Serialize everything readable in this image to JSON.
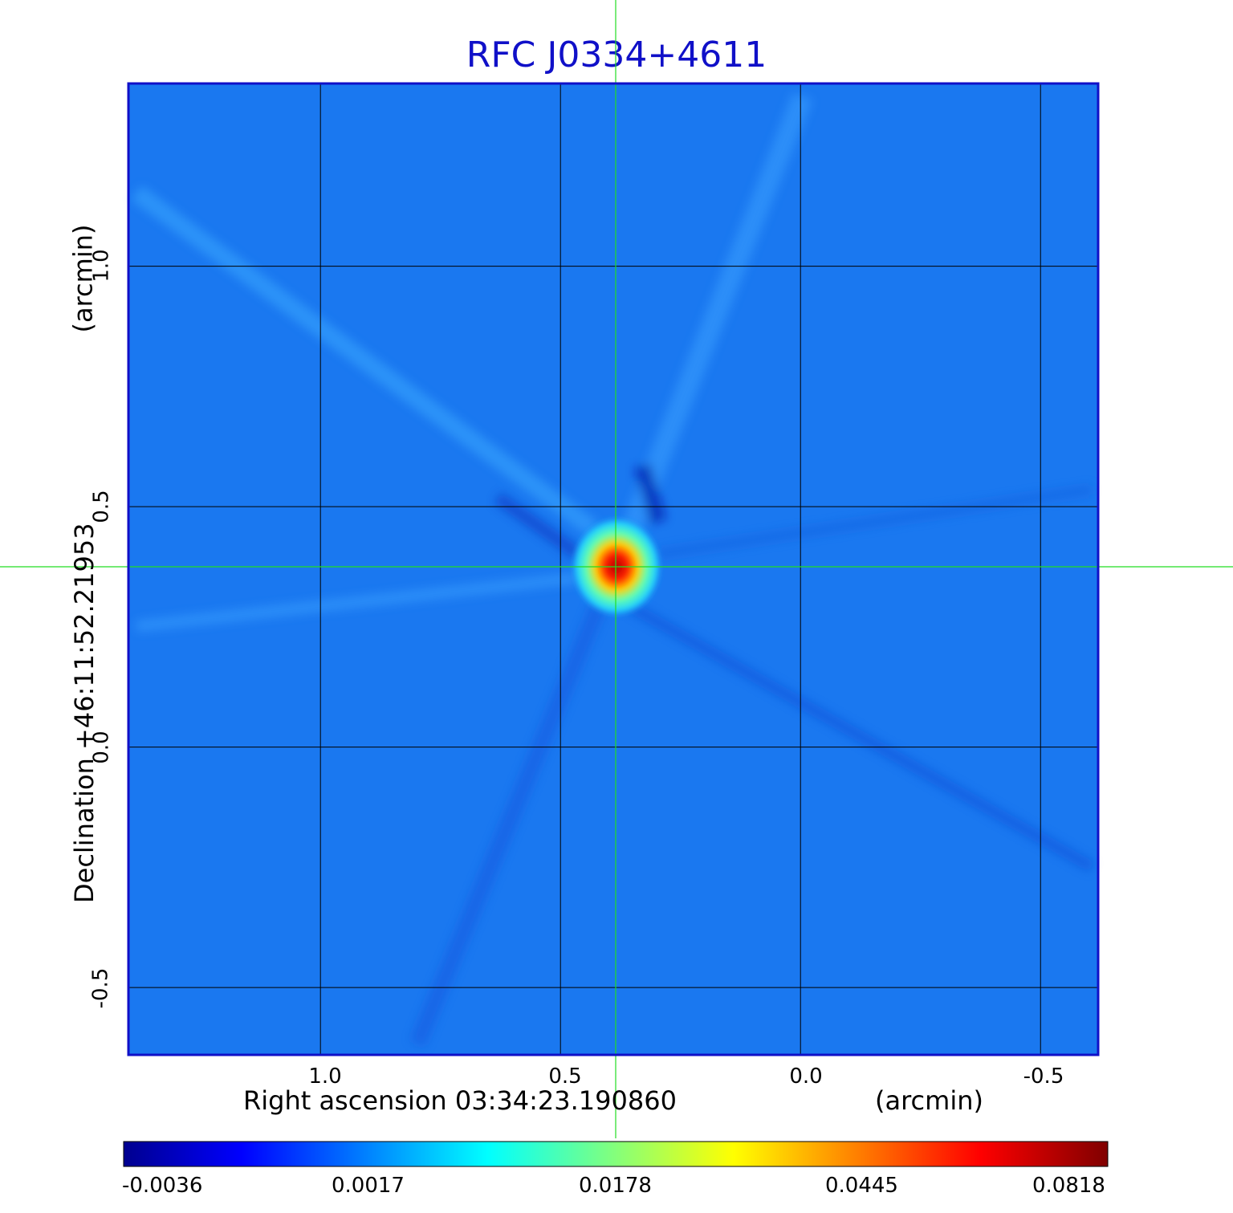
{
  "chart_data": {
    "type": "heatmap",
    "title": "RFC J0334+4611",
    "xlabel": "Right ascension  03:34:23.190860",
    "xunit": "(arcmin)",
    "ylabel": "Declination  +46:11:52.21953",
    "yunit": "(arcmin)",
    "x_ticks": [
      "1.0",
      "0.5",
      "0.0",
      "-0.5"
    ],
    "y_ticks": [
      "1.0",
      "0.5",
      "0.0",
      "-0.5"
    ],
    "x_tick_values": [
      1.0,
      0.5,
      0.0,
      -0.5
    ],
    "y_tick_values": [
      1.0,
      0.5,
      0.0,
      -0.5
    ],
    "xlim": [
      1.4,
      -0.62
    ],
    "ylim": [
      -0.64,
      1.38
    ],
    "grid": true,
    "crosshair": {
      "x": 0.385,
      "y": 0.375,
      "color": "#22dd22"
    },
    "peak": {
      "x": 0.385,
      "y": 0.375
    },
    "colormap": "jet",
    "colorbar_ticks": [
      "-0.0036",
      "0.0017",
      "0.0178",
      "0.0445",
      "0.0818"
    ],
    "colorbar_range": [
      -0.0036,
      0.0818
    ]
  },
  "colors": {
    "title": "#1010c8",
    "frame": "#1010c8",
    "background_map": "#1a78f0"
  }
}
